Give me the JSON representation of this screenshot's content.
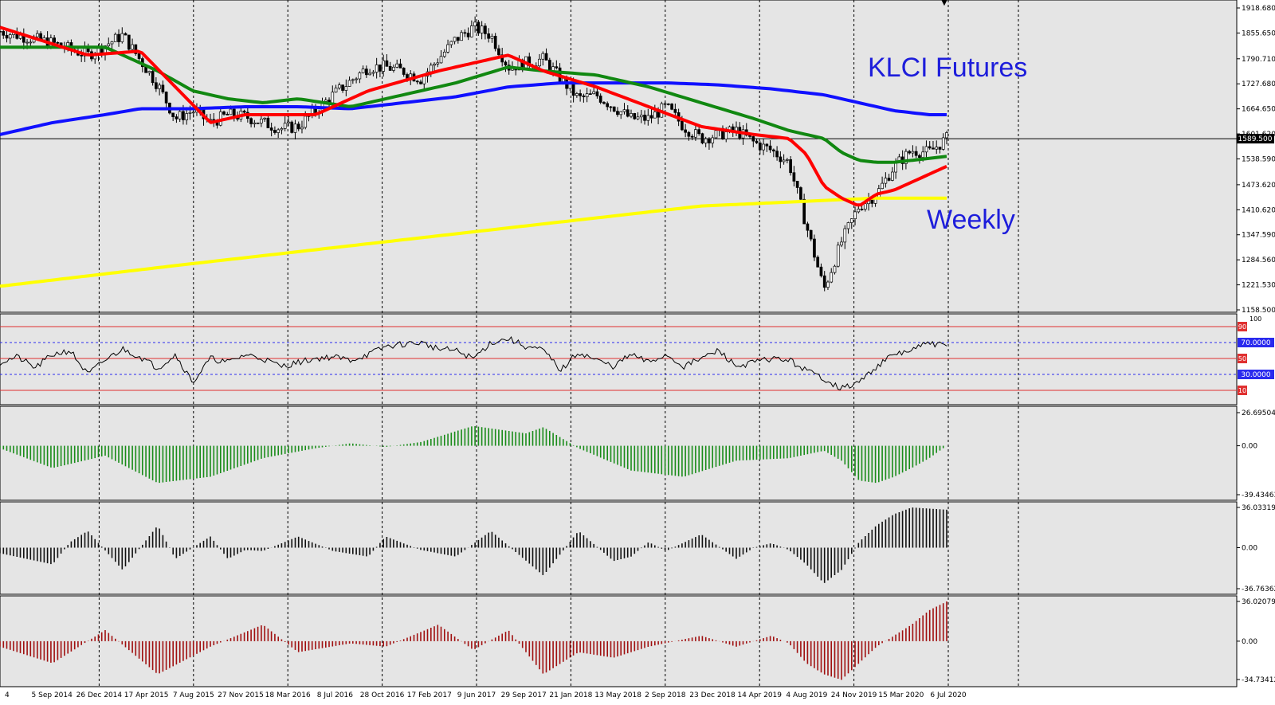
{
  "chart": {
    "title": "KLCI Futures",
    "subtitle": "Weekly",
    "current_price_label": "1589.500",
    "top_marker": "▼"
  },
  "colors": {
    "background": "#e5e5e5",
    "axis_bg": "#ffffff",
    "title": "#1d1ddb",
    "ma_fast": "#ff0000",
    "ma_mid": "#118811",
    "ma_slow": "#1010ff",
    "ma_long": "#ffff00",
    "hist_green": "#1a8c1a",
    "hist_black": "#111111",
    "hist_red": "#a01010",
    "rsi_line": "#000000",
    "level_red": "#e03030",
    "level_blue": "#2a2aee"
  },
  "chart_data": [
    {
      "type": "candlestick",
      "title": "KLCI Futures",
      "subtitle": "Weekly",
      "ylim": [
        1158.5,
        1918.68
      ],
      "y_ticks": [
        "1918.680",
        "1855.650",
        "1790.710",
        "1727.680",
        "1664.650",
        "1601.620",
        "1538.590",
        "1473.620",
        "1410.620",
        "1347.590",
        "1284.560",
        "1221.530",
        "1158.500"
      ],
      "last_price": 1589.5,
      "x_tick_labels": [
        "4",
        "5 Sep 2014",
        "26 Dec 2014",
        "17 Apr 2015",
        "7 Aug 2015",
        "27 Nov 2015",
        "18 Mar 2016",
        "8 Jul 2016",
        "28 Oct 2016",
        "17 Feb 2017",
        "9 Jun 2017",
        "29 Sep 2017",
        "21 Jan 2018",
        "13 May 2018",
        "2 Sep 2018",
        "23 Dec 2018",
        "14 Apr 2019",
        "4 Aug 2019",
        "24 Nov 2019",
        "15 Mar 2020",
        "6 Jul 2020"
      ],
      "close_series": {
        "x": [
          0,
          3,
          5,
          7,
          9,
          10,
          11,
          12,
          13,
          14,
          15,
          16,
          17,
          18,
          19,
          20,
          21,
          22,
          23,
          24,
          25,
          26,
          27,
          28,
          29,
          30,
          31,
          32,
          33,
          34,
          35,
          36,
          37,
          38,
          39,
          40,
          41,
          42,
          43,
          44,
          45,
          46,
          47,
          48,
          49,
          50,
          51,
          52,
          53,
          54
        ],
        "values": [
          1860,
          1830,
          1800,
          1850,
          1725,
          1640,
          1660,
          1630,
          1650,
          1645,
          1630,
          1615,
          1620,
          1660,
          1700,
          1735,
          1770,
          1770,
          1760,
          1740,
          1790,
          1840,
          1870,
          1850,
          1770,
          1780,
          1790,
          1740,
          1690,
          1700,
          1670,
          1640,
          1640,
          1670,
          1620,
          1590,
          1600,
          1610,
          1580,
          1560,
          1530,
          1370,
          1210,
          1330,
          1420,
          1450,
          1520,
          1560,
          1555,
          1590
        ]
      },
      "moving_averages": [
        {
          "x": [
            0,
            5,
            8,
            12,
            14,
            18,
            21,
            25,
            29,
            31,
            34,
            37,
            40,
            43,
            45,
            46,
            47,
            48,
            49,
            50,
            51,
            52,
            53,
            54
          ],
          "values": [
            1870,
            1800,
            1810,
            1630,
            1650,
            1650,
            1710,
            1760,
            1800,
            1760,
            1720,
            1670,
            1620,
            1600,
            1590,
            1550,
            1470,
            1440,
            1420,
            1450,
            1460,
            1480,
            1500,
            1520
          ]
        },
        {
          "x": [
            0,
            3,
            6,
            9,
            11,
            13,
            15,
            17,
            20,
            23,
            26,
            29,
            31,
            34,
            37,
            40,
            43,
            45,
            47,
            48,
            49,
            50,
            51,
            52,
            53,
            54
          ],
          "values": [
            1820,
            1820,
            1820,
            1760,
            1710,
            1690,
            1680,
            1690,
            1670,
            1700,
            1730,
            1770,
            1760,
            1750,
            1720,
            1680,
            1640,
            1610,
            1590,
            1555,
            1535,
            1530,
            1530,
            1535,
            1540,
            1545
          ]
        },
        {
          "x": [
            0,
            3,
            6,
            8,
            11,
            14,
            17,
            20,
            23,
            26,
            29,
            32,
            35,
            38,
            41,
            44,
            46,
            47,
            48,
            49,
            50,
            51,
            52,
            53,
            54
          ],
          "values": [
            1600,
            1630,
            1650,
            1665,
            1665,
            1670,
            1670,
            1665,
            1680,
            1695,
            1720,
            1730,
            1730,
            1730,
            1725,
            1715,
            1705,
            1700,
            1690,
            1680,
            1670,
            1660,
            1655,
            1650,
            1650
          ]
        },
        {
          "x": [
            0,
            10,
            20,
            30,
            40,
            50,
            54
          ],
          "values": [
            1218,
            1270,
            1320,
            1370,
            1420,
            1440,
            1440
          ]
        }
      ]
    },
    {
      "type": "line",
      "name": "RSI",
      "ylim": [
        0,
        100
      ],
      "levels": [
        90,
        70,
        50,
        30,
        10
      ],
      "level_labels": [
        "90",
        "70.0000",
        "50",
        "30.0000",
        "10"
      ],
      "extra_tick": "100",
      "x": [
        0,
        1,
        2,
        3,
        4,
        5,
        6,
        7,
        8,
        9,
        10,
        11,
        12,
        13,
        14,
        15,
        16,
        17,
        18,
        19,
        20,
        21,
        22,
        23,
        24,
        25,
        26,
        27,
        28,
        29,
        30,
        31,
        32,
        33,
        34,
        35,
        36,
        37,
        38,
        39,
        40,
        41,
        42,
        43,
        44,
        45,
        46,
        47,
        48,
        49,
        50,
        51,
        52,
        53,
        54
      ],
      "values": [
        45,
        52,
        38,
        55,
        60,
        30,
        48,
        62,
        52,
        38,
        55,
        20,
        50,
        45,
        55,
        50,
        40,
        45,
        50,
        52,
        48,
        55,
        65,
        68,
        70,
        62,
        60,
        50,
        70,
        75,
        65,
        60,
        35,
        58,
        48,
        40,
        55,
        45,
        55,
        40,
        50,
        60,
        40,
        45,
        50,
        48,
        35,
        25,
        12,
        20,
        40,
        55,
        60,
        70,
        65
      ]
    },
    {
      "type": "bar",
      "name": "histogram 1",
      "ylim": [
        -39.43463,
        26.69504
      ],
      "y_ticks": [
        "26.69504",
        "0.00",
        "-39.43463"
      ],
      "x": [
        0,
        3,
        6,
        9,
        12,
        15,
        18,
        20,
        22,
        24,
        27,
        30,
        31,
        33,
        36,
        39,
        42,
        45,
        47,
        48,
        49,
        50,
        51,
        52,
        53,
        54
      ],
      "values": [
        -2,
        -18,
        -8,
        -30,
        -25,
        -10,
        -2,
        2,
        -1,
        3,
        16,
        10,
        15,
        -2,
        -20,
        -25,
        -12,
        -10,
        -4,
        -12,
        -28,
        -30,
        -25,
        -18,
        -10,
        0
      ]
    },
    {
      "type": "bar",
      "name": "histogram 2",
      "ylim": [
        -36.76362,
        36.03319
      ],
      "y_ticks": [
        "36.03319",
        "0.00",
        "-36.76362"
      ],
      "x": [
        0,
        3,
        4,
        5,
        7,
        9,
        10,
        11,
        12,
        13,
        14,
        15,
        17,
        19,
        21,
        22,
        24,
        26,
        28,
        31,
        33,
        35,
        36,
        37,
        38,
        40,
        42,
        43,
        44,
        45,
        46,
        47,
        48,
        49,
        50,
        51,
        52,
        53,
        54
      ],
      "values": [
        -5,
        -15,
        5,
        15,
        -20,
        20,
        -10,
        0,
        10,
        -10,
        -2,
        -3,
        10,
        -3,
        -8,
        10,
        -2,
        -8,
        15,
        -25,
        15,
        -12,
        -8,
        5,
        -3,
        12,
        -10,
        0,
        4,
        -2,
        -15,
        -32,
        -20,
        5,
        20,
        30,
        36,
        35,
        34
      ]
    },
    {
      "type": "bar",
      "name": "histogram 3",
      "ylim": [
        -34.73412,
        36.02079
      ],
      "y_ticks": [
        "36.02079",
        "0.00",
        "-34.73412"
      ],
      "x": [
        0,
        3,
        6,
        9,
        12,
        15,
        17,
        20,
        22,
        25,
        27,
        29,
        31,
        33,
        35,
        37,
        40,
        42,
        44,
        45,
        46,
        47,
        48,
        49,
        50,
        51,
        52,
        53,
        54
      ],
      "values": [
        -5,
        -20,
        10,
        -30,
        -5,
        15,
        -10,
        -2,
        -5,
        15,
        -8,
        10,
        -30,
        -10,
        -15,
        -5,
        5,
        -5,
        5,
        -2,
        -20,
        -30,
        -35,
        -20,
        -5,
        5,
        15,
        28,
        36
      ]
    }
  ]
}
